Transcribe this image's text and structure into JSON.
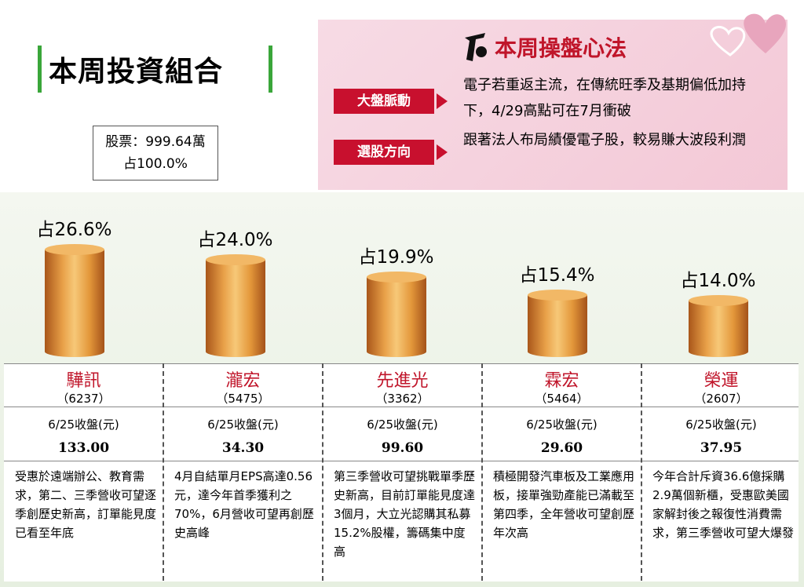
{
  "header": {
    "title": "本周投資組合",
    "summary": [
      "股票：999.64萬",
      "占100.0%"
    ]
  },
  "strategy": {
    "title": "本周操盤心法",
    "items": [
      {
        "label": "大盤脈動",
        "text": "電子若重返主流，在傳統旺季及基期偏低加持下，4/29高點可在7月衝破"
      },
      {
        "label": "選股方向",
        "text": "跟著法人布局績優電子股，較易賺大波段利潤"
      }
    ]
  },
  "chart_data": {
    "type": "bar",
    "categories": [
      "驊訊",
      "瀧宏",
      "先進光",
      "霖宏",
      "榮運"
    ],
    "values": [
      26.6,
      24.0,
      19.9,
      15.4,
      14.0
    ],
    "value_labels": [
      "占26.6%",
      "占24.0%",
      "占19.9%",
      "占15.4%",
      "占14.0%"
    ],
    "color": "#e0953a"
  },
  "table": {
    "codes": [
      "（6237）",
      "（5475）",
      "（3362）",
      "（5464）",
      "（2607）"
    ],
    "price_label": "6/25收盤(元)",
    "prices": [
      "133.00",
      "34.30",
      "99.60",
      "29.60",
      "37.95"
    ],
    "notes": [
      "受惠於遠端辦公、教育需求，第二、三季營收可望逐季創歷史新高，訂單能見度已看至年底",
      "4月自結單月EPS高達0.56元，達今年首季獲利之70%，6月營收可望再創歷史高峰",
      "第三季營收可望挑戰單季歷史新高，目前訂單能見度達3個月，大立光認購其私募15.2%股權，籌碼集中度高",
      "積極開發汽車板及工業應用板，接單強勁產能已滿載至第四季，全年營收可望創歷年次高",
      "今年合計斥資36.6億採購2.9萬個新櫃，受惠歐美國家解封後之報復性消費需求，第三季營收可望大爆發"
    ]
  }
}
